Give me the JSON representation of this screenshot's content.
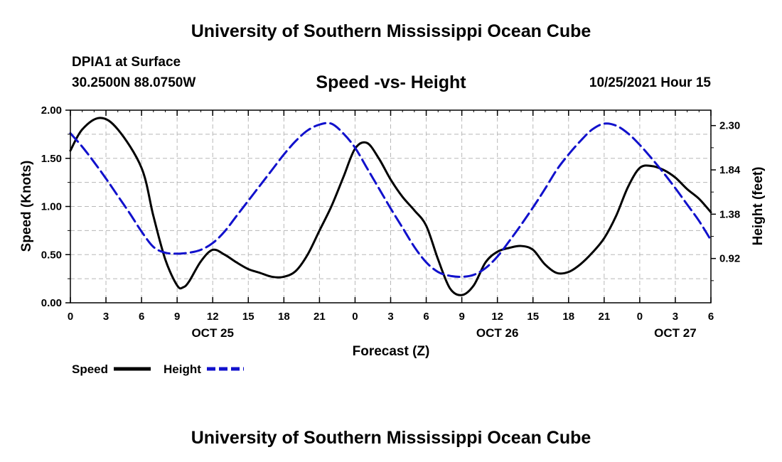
{
  "page": {
    "title": "University of Southern Mississippi Ocean Cube",
    "footer_title": "University of Southern Mississippi Ocean Cube",
    "station": "DPIA1 at Surface",
    "location": "30.2500N  88.0750W",
    "datetime": "10/25/2021 Hour 15"
  },
  "chart_data": {
    "type": "line",
    "title": "Speed -vs- Height",
    "xlabel": "Forecast (Z)",
    "ylabel": "Speed (Knots)",
    "y2label": "Height (feet)",
    "x_range_hours": [
      0,
      54
    ],
    "x_ticks": [
      {
        "h": 0,
        "label": "0"
      },
      {
        "h": 3,
        "label": "3"
      },
      {
        "h": 6,
        "label": "6"
      },
      {
        "h": 9,
        "label": "9"
      },
      {
        "h": 12,
        "label": "12"
      },
      {
        "h": 15,
        "label": "15"
      },
      {
        "h": 18,
        "label": "18"
      },
      {
        "h": 21,
        "label": "21"
      },
      {
        "h": 24,
        "label": "0"
      },
      {
        "h": 27,
        "label": "3"
      },
      {
        "h": 30,
        "label": "6"
      },
      {
        "h": 33,
        "label": "9"
      },
      {
        "h": 36,
        "label": "12"
      },
      {
        "h": 39,
        "label": "15"
      },
      {
        "h": 42,
        "label": "18"
      },
      {
        "h": 45,
        "label": "21"
      },
      {
        "h": 48,
        "label": "0"
      },
      {
        "h": 51,
        "label": "3"
      },
      {
        "h": 54,
        "label": "6"
      }
    ],
    "day_labels": [
      {
        "h": 12,
        "label": "OCT 25"
      },
      {
        "h": 36,
        "label": "OCT 26"
      },
      {
        "h": 51,
        "label": "OCT 27"
      }
    ],
    "ylim": [
      0,
      2
    ],
    "y_ticks": [
      {
        "v": 0,
        "label": "0.00"
      },
      {
        "v": 0.5,
        "label": "0.50"
      },
      {
        "v": 1.0,
        "label": "1.00"
      },
      {
        "v": 1.5,
        "label": "1.50"
      },
      {
        "v": 2.0,
        "label": "2.00"
      }
    ],
    "y2lim": [
      0.46,
      2.46
    ],
    "y2_ticks": [
      {
        "v": 0.92,
        "label": "0.92"
      },
      {
        "v": 1.38,
        "label": "1.38"
      },
      {
        "v": 1.84,
        "label": "1.84"
      },
      {
        "v": 2.3,
        "label": "2.30"
      }
    ],
    "grid": true,
    "legend_position": "bottom-left",
    "series": [
      {
        "name": "Speed",
        "axis": "left",
        "color": "#000000",
        "dash": "solid",
        "x": [
          0,
          1,
          2.5,
          4,
          6,
          7,
          8,
          9,
          9.5,
          10,
          11,
          12,
          13,
          14,
          15,
          16,
          17,
          18,
          19,
          20,
          21,
          22,
          23,
          24,
          25,
          26,
          27,
          28,
          29,
          30,
          31,
          32,
          33,
          34,
          35,
          36,
          37,
          38,
          39,
          40,
          41,
          42,
          43,
          44,
          45,
          46,
          47,
          48,
          49,
          50,
          51,
          52,
          53,
          54
        ],
        "y": [
          1.58,
          1.8,
          1.92,
          1.8,
          1.4,
          0.9,
          0.45,
          0.18,
          0.16,
          0.22,
          0.43,
          0.55,
          0.5,
          0.42,
          0.35,
          0.31,
          0.27,
          0.27,
          0.33,
          0.5,
          0.75,
          1.0,
          1.3,
          1.6,
          1.66,
          1.5,
          1.28,
          1.1,
          0.96,
          0.8,
          0.45,
          0.15,
          0.08,
          0.18,
          0.42,
          0.53,
          0.57,
          0.59,
          0.55,
          0.4,
          0.31,
          0.32,
          0.4,
          0.52,
          0.67,
          0.9,
          1.2,
          1.4,
          1.42,
          1.38,
          1.3,
          1.18,
          1.08,
          0.94
        ]
      },
      {
        "name": "Height",
        "axis": "right",
        "color": "#1111cc",
        "dash": "dashed",
        "x": [
          0,
          1,
          2,
          3,
          4,
          5,
          6,
          7,
          8,
          9,
          10,
          11,
          12,
          13,
          14,
          15,
          16,
          17,
          18,
          19,
          20,
          21,
          22,
          23,
          24,
          25,
          26,
          27,
          28,
          29,
          30,
          31,
          32,
          33,
          34,
          35,
          36,
          37,
          38,
          39,
          40,
          41,
          42,
          43,
          44,
          45,
          46,
          47,
          48,
          49,
          50,
          51,
          52,
          53,
          54
        ],
        "y": [
          2.22,
          2.08,
          1.92,
          1.75,
          1.57,
          1.39,
          1.2,
          1.04,
          0.98,
          0.97,
          0.98,
          1.01,
          1.08,
          1.2,
          1.36,
          1.52,
          1.68,
          1.84,
          2.0,
          2.14,
          2.25,
          2.31,
          2.32,
          2.22,
          2.07,
          1.86,
          1.65,
          1.44,
          1.24,
          1.04,
          0.88,
          0.78,
          0.74,
          0.73,
          0.75,
          0.82,
          0.94,
          1.1,
          1.27,
          1.45,
          1.64,
          1.84,
          2.0,
          2.14,
          2.26,
          2.32,
          2.3,
          2.22,
          2.1,
          1.96,
          1.81,
          1.65,
          1.48,
          1.31,
          1.11
        ]
      }
    ]
  }
}
